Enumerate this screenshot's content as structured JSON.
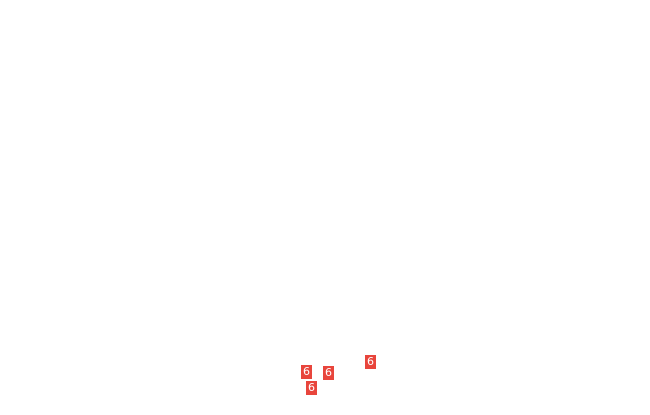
{
  "badge_color": "#e8453c",
  "badges": [
    {
      "label": "6"
    },
    {
      "label": "6"
    },
    {
      "label": "6"
    },
    {
      "label": "6"
    }
  ]
}
